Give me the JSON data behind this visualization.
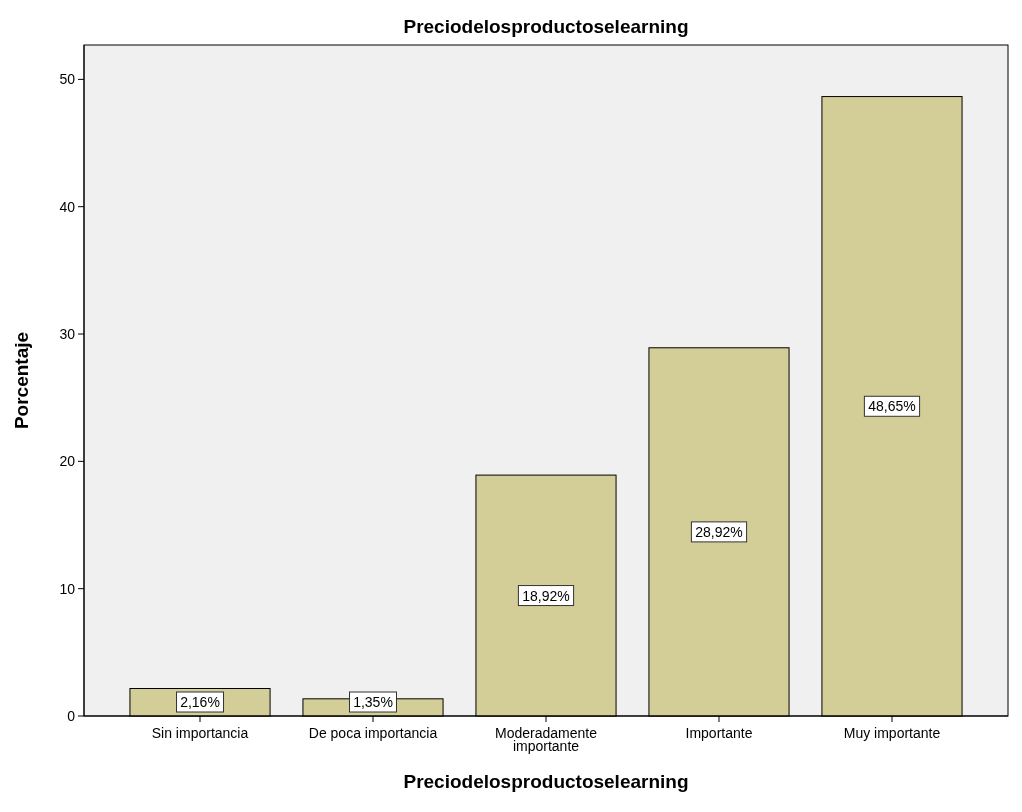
{
  "chart_data": {
    "type": "bar",
    "title": "Preciodelosproductoselearning",
    "xlabel": "Preciodelosproductoselearning",
    "ylabel": "Porcentaje",
    "categories": [
      "Sin importancia",
      "De poca importancia",
      "Moderadamente importante",
      "Importante",
      "Muy importante"
    ],
    "values": [
      2.16,
      1.35,
      18.92,
      28.92,
      48.65
    ],
    "value_labels": [
      "2,16%",
      "1,35%",
      "18,92%",
      "28,92%",
      "48,65%"
    ],
    "color": "#d3ce97",
    "ylim": [
      0,
      52.7
    ],
    "yticks": [
      0,
      10,
      20,
      30,
      40,
      50
    ],
    "grid": false
  }
}
